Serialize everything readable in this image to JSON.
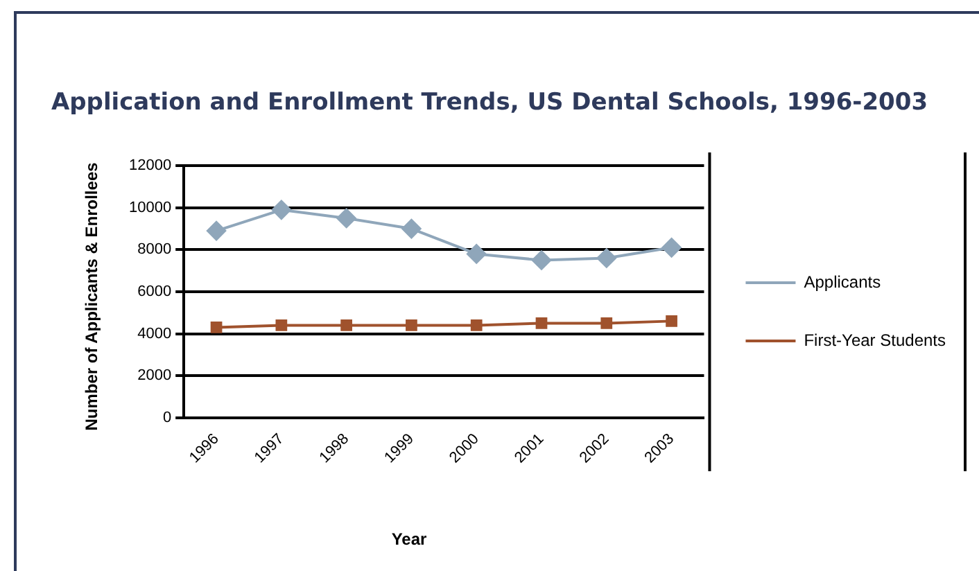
{
  "chart_data": {
    "type": "line",
    "title": "Application and Enrollment Trends,  US Dental Schools, 1996-2003",
    "xlabel": "Year",
    "ylabel": "Number of Applicants & Enrollees",
    "categories": [
      "1996",
      "1997",
      "1998",
      "1999",
      "2000",
      "2001",
      "2002",
      "2003"
    ],
    "series": [
      {
        "name": "Applicants",
        "color": "#8fa6ba",
        "marker": "diamond",
        "values": [
          8900,
          9900,
          9500,
          9000,
          7800,
          7500,
          7600,
          8100
        ]
      },
      {
        "name": "First-Year Students",
        "color": "#a0522d",
        "marker": "square",
        "values": [
          4300,
          4400,
          4400,
          4400,
          4400,
          4500,
          4500,
          4600
        ]
      }
    ],
    "ylim": [
      0,
      12000
    ],
    "yticks": [
      0,
      2000,
      4000,
      6000,
      8000,
      10000,
      12000
    ],
    "grid": "y",
    "legend": "right"
  }
}
